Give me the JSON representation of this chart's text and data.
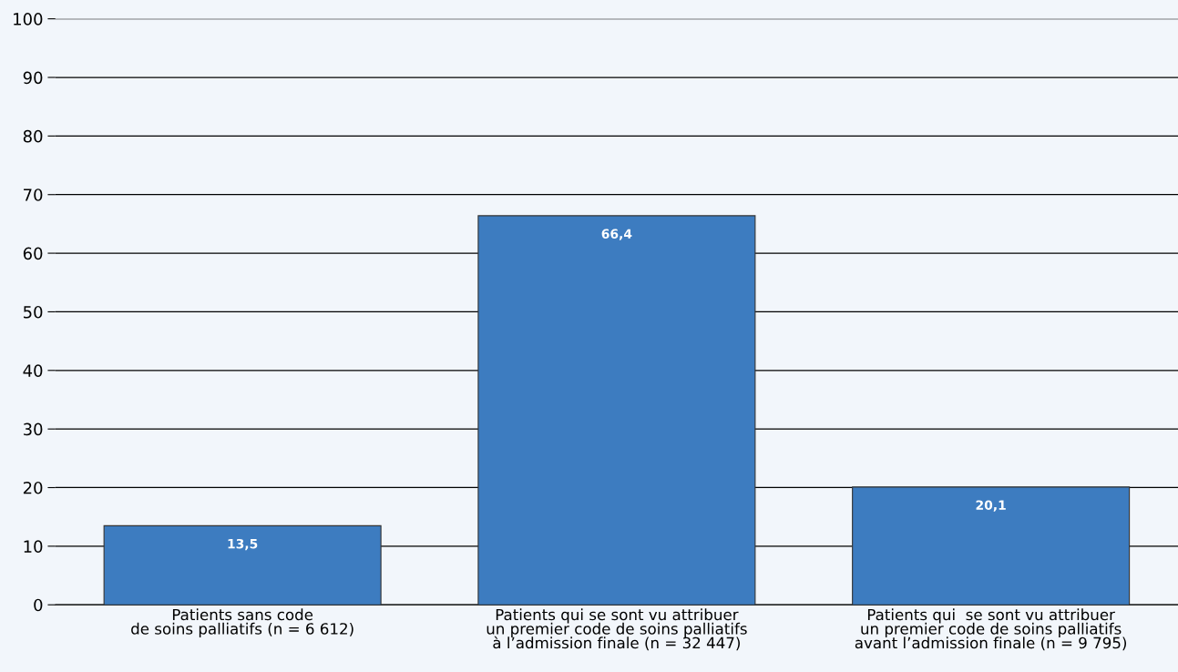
{
  "chart_data": {
    "type": "bar",
    "categories": [
      "Patients sans code\nde soins palliatifs (n = 6 612)",
      "Patients qui se sont vu attribuer\nun premier code de soins palliatifs\nà l’admission finale (n = 32 447)",
      "Patients qui  se sont vu attribuer\nun premier code de soins palliatifs\navant l’admission finale (n = 9 795)"
    ],
    "values": [
      13.5,
      66.4,
      20.1
    ],
    "value_labels": [
      "13,5",
      "66,4",
      "20,1"
    ],
    "color": "#3d7cc0",
    "ylim": [
      0,
      100
    ],
    "yticks": [
      0,
      10,
      20,
      30,
      40,
      50,
      60,
      70,
      80,
      90,
      100
    ],
    "grid": "y",
    "legend": false
  }
}
